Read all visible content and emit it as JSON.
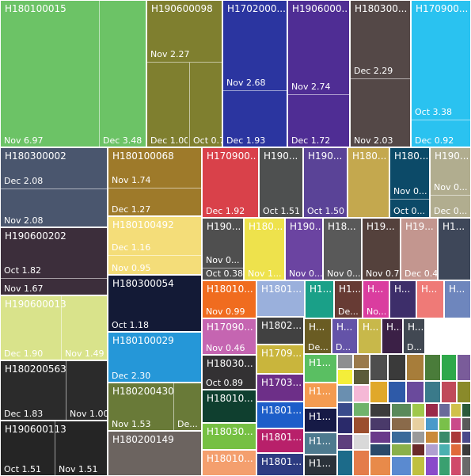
{
  "chart_data": {
    "type": "treemap",
    "title": "",
    "items": [
      {
        "name": "H180100015",
        "color": "#6cc366",
        "children": [
          {
            "label": "Nov",
            "value": 6.97
          },
          {
            "label": "Dec",
            "value": 3.48
          }
        ]
      },
      {
        "name": "H190600098",
        "color": "#7f7f2f",
        "children": [
          {
            "label": "Nov",
            "value": 2.27
          },
          {
            "label": "Dec",
            "value": 1.0
          },
          {
            "label": "Oct",
            "value": 0.7
          }
        ]
      },
      {
        "name": "H1702000...",
        "color": "#2b35a0",
        "children": [
          {
            "label": "Nov",
            "value": 2.68
          },
          {
            "label": "Dec",
            "value": 1.93
          }
        ]
      },
      {
        "name": "H1906000...",
        "color": "#4f2d94",
        "children": [
          {
            "label": "Nov",
            "value": 2.74
          },
          {
            "label": "Dec",
            "value": 1.72
          }
        ]
      },
      {
        "name": "H180300...",
        "color": "#544847",
        "children": [
          {
            "label": "Dec",
            "value": 2.29
          },
          {
            "label": "Nov",
            "value": 2.03
          }
        ]
      },
      {
        "name": "H170900...",
        "color": "#2ac2f0",
        "children": [
          {
            "label": "Oct",
            "value": 3.38
          },
          {
            "label": "Dec",
            "value": 0.92
          }
        ]
      },
      {
        "name": "H180300002",
        "color": "#4a566e",
        "children": [
          {
            "label": "Dec",
            "value": 2.08
          },
          {
            "label": "Nov",
            "value": 2.08
          }
        ]
      },
      {
        "name": "H180100068",
        "color": "#9e7a2a",
        "children": [
          {
            "label": "Nov",
            "value": 1.74
          },
          {
            "label": "Dec",
            "value": 1.27
          }
        ]
      },
      {
        "name": "H170900...",
        "color": "#d9414a",
        "children": [
          {
            "label": "Dec",
            "value": 1.92
          }
        ]
      },
      {
        "name": "H190...",
        "color": "#4e5050",
        "children": [
          {
            "label": "Oct",
            "value": 1.51
          }
        ]
      },
      {
        "name": "H190...",
        "color": "#5a4397",
        "children": [
          {
            "label": "Oct",
            "value": 1.5
          }
        ]
      },
      {
        "name": "H180...",
        "color": "#c4a84e",
        "children": []
      },
      {
        "name": "H180...",
        "color": "#0c4a68",
        "children": [
          {
            "label": "Nov 0...",
            "value": null
          },
          {
            "label": "Oct 0...",
            "value": null
          }
        ]
      },
      {
        "name": "H190...",
        "color": "#b1ad8f",
        "children": [
          {
            "label": "Nov 0...",
            "value": null
          },
          {
            "label": "Dec 0...",
            "value": null
          }
        ]
      },
      {
        "name": "H190600202",
        "color": "#3c2e3b",
        "children": [
          {
            "label": "Oct",
            "value": 1.82
          },
          {
            "label": "Nov",
            "value": 1.67
          }
        ]
      },
      {
        "name": "H180100492",
        "color": "#f4dd79",
        "children": [
          {
            "label": "Dec",
            "value": 1.16
          },
          {
            "label": "Nov",
            "value": 0.95
          }
        ]
      },
      {
        "name": "H190...",
        "color": "#4f4f4f",
        "children": [
          {
            "label": "Nov 0...",
            "value": null
          },
          {
            "label": "Oct",
            "value": 0.38
          }
        ]
      },
      {
        "name": "H180...",
        "color": "#eee24c",
        "children": [
          {
            "label": "Nov 1...",
            "value": null
          }
        ]
      },
      {
        "name": "H190...",
        "color": "#6b44a1",
        "children": [
          {
            "label": "Nov 0...",
            "value": null
          }
        ]
      },
      {
        "name": "H18...",
        "color": "#595959",
        "children": [
          {
            "label": "Nov 0...",
            "value": null
          }
        ]
      },
      {
        "name": "H19...",
        "color": "#54413c",
        "children": [
          {
            "label": "Nov",
            "value": 0.7
          }
        ]
      },
      {
        "name": "H19...",
        "color": "#c3968f",
        "children": [
          {
            "label": "Dec",
            "value": 0.4
          }
        ]
      },
      {
        "name": "H1...",
        "color": "#3e4759",
        "children": []
      },
      {
        "name": "H190600013",
        "color": "#d9e38b",
        "children": [
          {
            "label": "Dec",
            "value": 1.9
          },
          {
            "label": "Nov",
            "value": 1.49
          }
        ]
      },
      {
        "name": "H180300054",
        "color": "#131a36",
        "children": [
          {
            "label": "Oct",
            "value": 1.18
          }
        ]
      },
      {
        "name": "H18010...",
        "color": "#f06c1f",
        "children": [
          {
            "label": "Nov",
            "value": 0.99
          }
        ]
      },
      {
        "name": "H1801...",
        "color": "#9ab0dc",
        "children": []
      },
      {
        "name": "H1...",
        "color": "#1aa088",
        "children": []
      },
      {
        "name": "H1...",
        "color": "#673b34",
        "children": [
          {
            "label": "De...",
            "value": null
          }
        ]
      },
      {
        "name": "H...",
        "color": "#da3d9f",
        "children": [
          {
            "label": "No...",
            "value": null
          }
        ]
      },
      {
        "name": "H...",
        "color": "#3d2e6a",
        "children": []
      },
      {
        "name": "H...",
        "color": "#ef7a77",
        "children": []
      },
      {
        "name": "H...",
        "color": "#6e86bd",
        "children": []
      },
      {
        "name": "H180100029",
        "color": "#2597d8",
        "children": [
          {
            "label": "Dec",
            "value": 2.3
          }
        ]
      },
      {
        "name": "H17090...",
        "color": "#c565b1",
        "children": [
          {
            "label": "Nov",
            "value": 0.46
          }
        ]
      },
      {
        "name": "H1802...",
        "color": "#414141",
        "children": []
      },
      {
        "name": "H...",
        "color": "#6a5c23",
        "children": [
          {
            "label": "De...",
            "value": null
          }
        ]
      },
      {
        "name": "H...",
        "color": "#6453a8",
        "children": [
          {
            "label": "D...",
            "value": null
          }
        ]
      },
      {
        "name": "H...",
        "color": "#c8b84a",
        "children": []
      },
      {
        "name": "H...",
        "color": "#3b2046",
        "children": [
          {
            "label": "N...",
            "value": null
          }
        ]
      },
      {
        "name": "H...",
        "color": "#414852",
        "children": [
          {
            "label": "D...",
            "value": null
          }
        ]
      },
      {
        "name": "H180200563",
        "color": "#2b2b2b",
        "children": [
          {
            "label": "Dec",
            "value": 1.83
          },
          {
            "label": "Nov",
            "value": 1.0
          }
        ]
      },
      {
        "name": "H18030...",
        "color": "#333133",
        "children": [
          {
            "label": "Oct",
            "value": 0.89
          }
        ]
      },
      {
        "name": "H1709...",
        "color": "#c9b53c",
        "children": []
      },
      {
        "name": "H1...",
        "color": "#5abf62",
        "children": []
      },
      {
        "name": "H180200430",
        "color": "#697a38",
        "children": [
          {
            "label": "Nov",
            "value": 1.53
          },
          {
            "label": "De...",
            "value": null
          }
        ]
      },
      {
        "name": "H18010...",
        "color": "#0f3f2f",
        "children": []
      },
      {
        "name": "H1703...",
        "color": "#6d2f88",
        "children": []
      },
      {
        "name": "H1...",
        "color": "#f49b50",
        "children": []
      },
      {
        "name": "H1801...",
        "color": "#1d5ec9",
        "children": []
      },
      {
        "name": "H1...",
        "color": "#161a46",
        "children": []
      },
      {
        "name": "H190600113",
        "color": "#252525",
        "children": [
          {
            "label": "Oct",
            "value": 1.51
          },
          {
            "label": "Nov",
            "value": 1.51
          }
        ]
      },
      {
        "name": "H180200149",
        "color": "#6c6460",
        "children": []
      },
      {
        "name": "H18030...",
        "color": "#76c043",
        "children": []
      },
      {
        "name": "H1801...",
        "color": "#b8206a",
        "children": []
      },
      {
        "name": "H1...",
        "color": "#4e7a8f",
        "children": []
      },
      {
        "name": "H18010...",
        "color": "#f49f6e",
        "children": []
      },
      {
        "name": "H1801...",
        "color": "#2d3b81",
        "children": []
      },
      {
        "name": "H1...",
        "color": "#2b323a",
        "children": []
      }
    ]
  }
}
